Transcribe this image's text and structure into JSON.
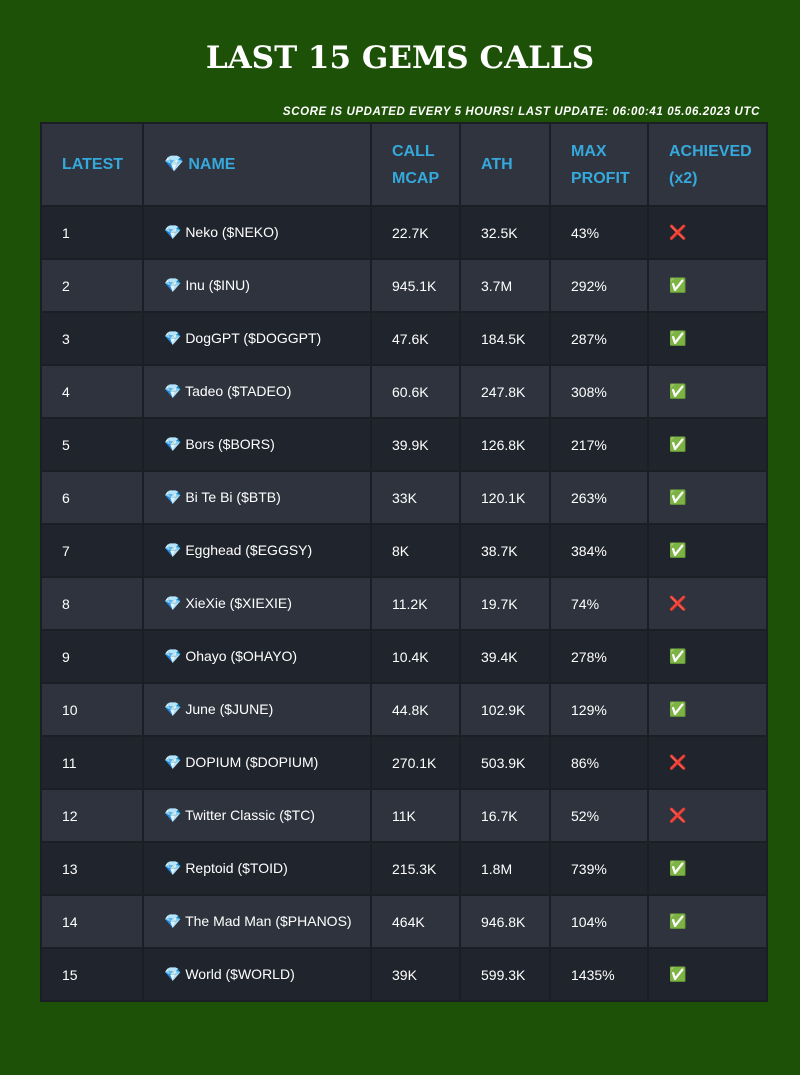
{
  "header": {
    "title": "LAST 15 GEMS CALLS",
    "subtitle": "SCORE IS UPDATED EVERY 5 HOURS! LAST UPDATE: 06:00:41 05.06.2023 UTC"
  },
  "table": {
    "columns": [
      "LATEST",
      "💎 NAME",
      "CALL MCAP",
      "ATH",
      "MAX PROFIT",
      "ACHIEVED (x2)"
    ],
    "rows": [
      [
        "1",
        "💎 Neko ($NEKO)",
        "22.7K",
        "32.5K",
        "43%",
        "❌"
      ],
      [
        "2",
        "💎 Inu ($INU)",
        "945.1K",
        "3.7M",
        "292%",
        "✅"
      ],
      [
        "3",
        "💎 DogGPT ($DOGGPT)",
        "47.6K",
        "184.5K",
        "287%",
        "✅"
      ],
      [
        "4",
        "💎 Tadeo ($TADEO)",
        "60.6K",
        "247.8K",
        "308%",
        "✅"
      ],
      [
        "5",
        "💎 Bors ($BORS)",
        "39.9K",
        "126.8K",
        "217%",
        "✅"
      ],
      [
        "6",
        "💎 Bi Te Bi ($BTB)",
        "33K",
        "120.1K",
        "263%",
        "✅"
      ],
      [
        "7",
        "💎 Egghead ($EGGSY)",
        "8K",
        "38.7K",
        "384%",
        "✅"
      ],
      [
        "8",
        "💎 XieXie ($XIEXIE)",
        "11.2K",
        "19.7K",
        "74%",
        "❌"
      ],
      [
        "9",
        "💎 Ohayo ($OHAYO)",
        "10.4K",
        "39.4K",
        "278%",
        "✅"
      ],
      [
        "10",
        "💎 June ($JUNE)",
        "44.8K",
        "102.9K",
        "129%",
        "✅"
      ],
      [
        "11",
        "💎 DOPIUM ($DOPIUM)",
        "270.1K",
        "503.9K",
        "86%",
        "❌"
      ],
      [
        "12",
        "💎 Twitter Classic ($TC)",
        "11K",
        "16.7K",
        "52%",
        "❌"
      ],
      [
        "13",
        "💎 Reptoid ($TOID)",
        "215.3K",
        "1.8M",
        "739%",
        "✅"
      ],
      [
        "14",
        "💎 The Mad Man ($PHANOS)",
        "464K",
        "946.8K",
        "104%",
        "✅"
      ],
      [
        "15",
        "💎 World ($WORLD)",
        "39K",
        "599.3K",
        "1435%",
        "✅"
      ]
    ]
  }
}
